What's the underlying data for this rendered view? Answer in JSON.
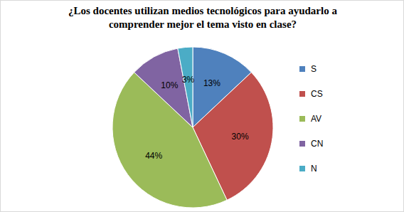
{
  "chart_data": {
    "type": "pie",
    "title": "¿Los docentes utilizan medios tecnológicos para ayudarlo a comprender mejor el tema visto en clase?",
    "categories": [
      "S",
      "CS",
      "AV",
      "CN",
      "N"
    ],
    "values": [
      13,
      30,
      44,
      10,
      3
    ],
    "value_labels": [
      "13%",
      "30%",
      "44%",
      "10%",
      "3%"
    ],
    "colors": [
      "#4f81bd",
      "#c0504d",
      "#9bbb59",
      "#8064a2",
      "#4bacc6"
    ],
    "data_labels": true,
    "legend": "right"
  }
}
